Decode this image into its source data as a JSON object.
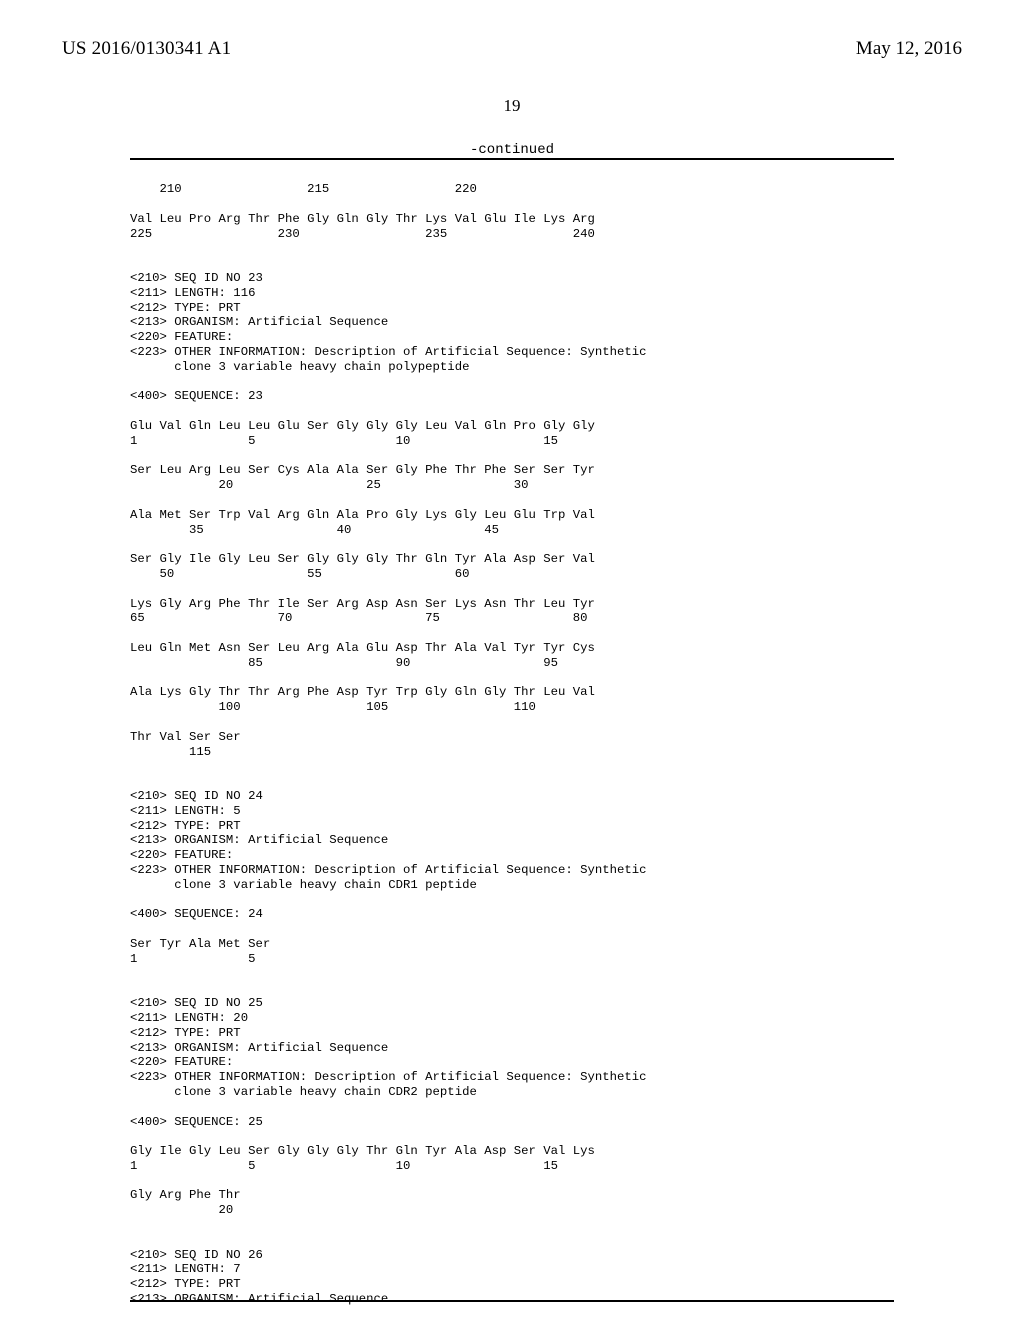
{
  "header": {
    "pub_number": "US 2016/0130341 A1",
    "pub_date": "May 12, 2016",
    "page_number": "19",
    "continued": "-continued"
  },
  "sequence_text": "    210                 215                 220\n\nVal Leu Pro Arg Thr Phe Gly Gln Gly Thr Lys Val Glu Ile Lys Arg\n225                 230                 235                 240\n\n\n<210> SEQ ID NO 23\n<211> LENGTH: 116\n<212> TYPE: PRT\n<213> ORGANISM: Artificial Sequence\n<220> FEATURE:\n<223> OTHER INFORMATION: Description of Artificial Sequence: Synthetic\n      clone 3 variable heavy chain polypeptide\n\n<400> SEQUENCE: 23\n\nGlu Val Gln Leu Leu Glu Ser Gly Gly Gly Leu Val Gln Pro Gly Gly\n1               5                   10                  15\n\nSer Leu Arg Leu Ser Cys Ala Ala Ser Gly Phe Thr Phe Ser Ser Tyr\n            20                  25                  30\n\nAla Met Ser Trp Val Arg Gln Ala Pro Gly Lys Gly Leu Glu Trp Val\n        35                  40                  45\n\nSer Gly Ile Gly Leu Ser Gly Gly Gly Thr Gln Tyr Ala Asp Ser Val\n    50                  55                  60\n\nLys Gly Arg Phe Thr Ile Ser Arg Asp Asn Ser Lys Asn Thr Leu Tyr\n65                  70                  75                  80\n\nLeu Gln Met Asn Ser Leu Arg Ala Glu Asp Thr Ala Val Tyr Tyr Cys\n                85                  90                  95\n\nAla Lys Gly Thr Thr Arg Phe Asp Tyr Trp Gly Gln Gly Thr Leu Val\n            100                 105                 110\n\nThr Val Ser Ser\n        115\n\n\n<210> SEQ ID NO 24\n<211> LENGTH: 5\n<212> TYPE: PRT\n<213> ORGANISM: Artificial Sequence\n<220> FEATURE:\n<223> OTHER INFORMATION: Description of Artificial Sequence: Synthetic\n      clone 3 variable heavy chain CDR1 peptide\n\n<400> SEQUENCE: 24\n\nSer Tyr Ala Met Ser\n1               5\n\n\n<210> SEQ ID NO 25\n<211> LENGTH: 20\n<212> TYPE: PRT\n<213> ORGANISM: Artificial Sequence\n<220> FEATURE:\n<223> OTHER INFORMATION: Description of Artificial Sequence: Synthetic\n      clone 3 variable heavy chain CDR2 peptide\n\n<400> SEQUENCE: 25\n\nGly Ile Gly Leu Ser Gly Gly Gly Thr Gln Tyr Ala Asp Ser Val Lys\n1               5                   10                  15\n\nGly Arg Phe Thr\n            20\n\n\n<210> SEQ ID NO 26\n<211> LENGTH: 7\n<212> TYPE: PRT\n<213> ORGANISM: Artificial Sequence"
}
